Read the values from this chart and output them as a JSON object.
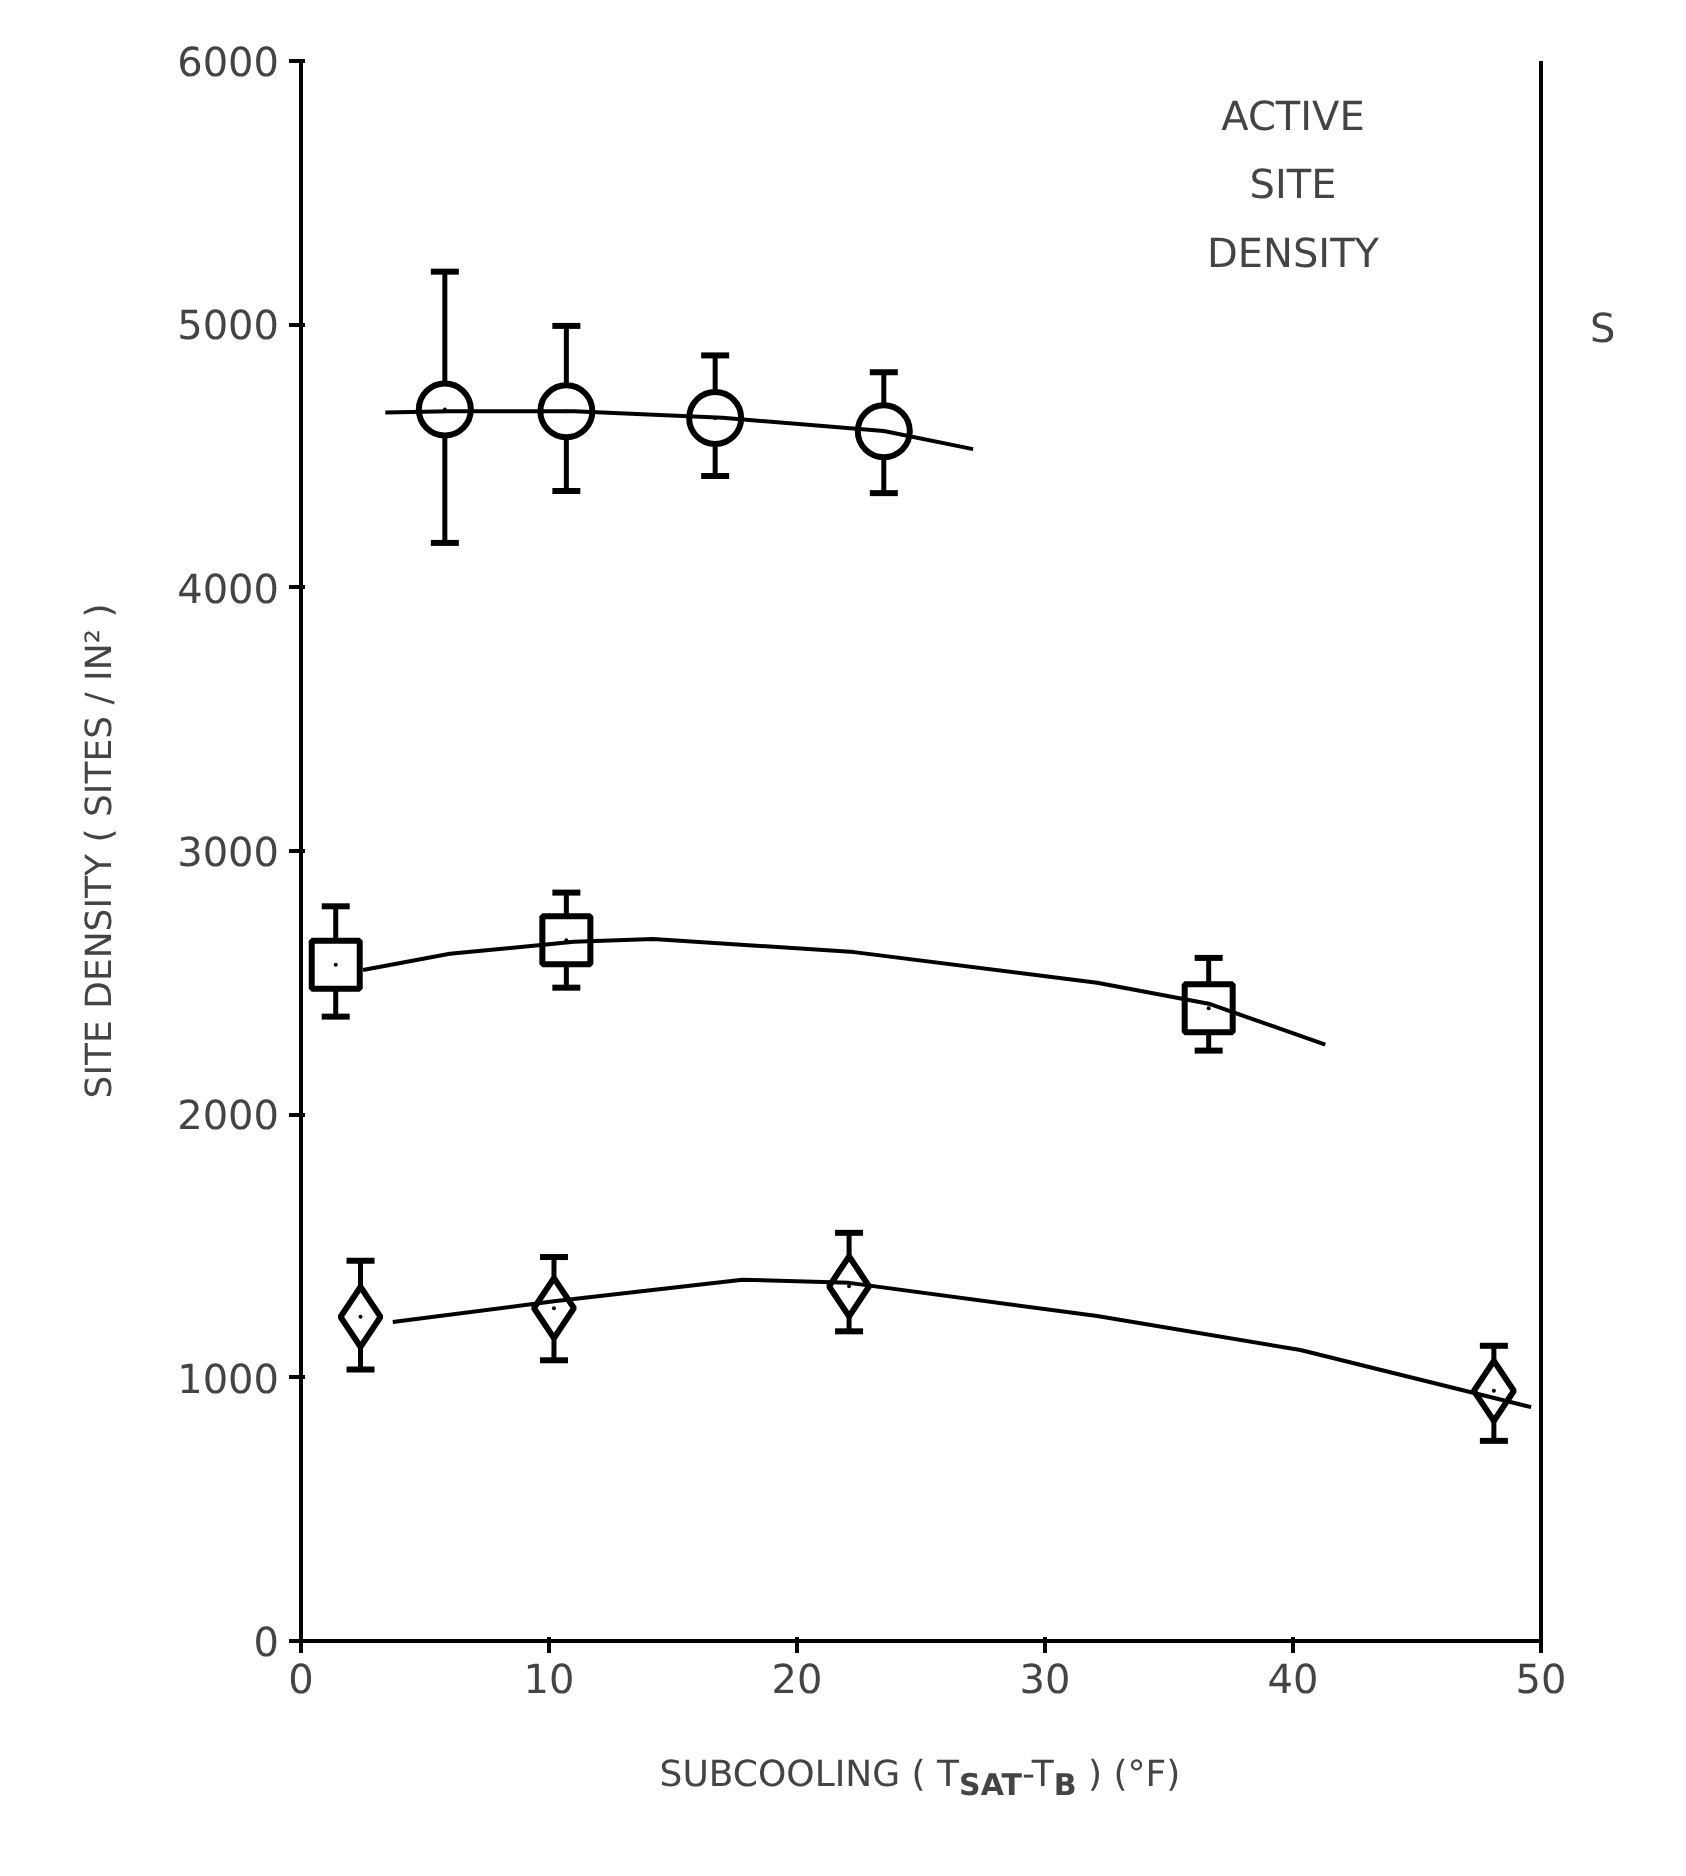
{
  "chart_data": {
    "type": "scatter",
    "xlabel": "SUBCOOLING ( T$_{SAT}$-T$_{B}$ ) (°F)",
    "ylabel": "SITE DENSITY ( SITES / IN² )",
    "annotations": [
      "ACTIVE",
      "SITE",
      "DENSITY",
      "S"
    ],
    "xlim": [
      0,
      50
    ],
    "ylim": [
      0,
      6000
    ],
    "xticks": [
      0,
      10,
      20,
      30,
      40,
      50
    ],
    "yticks": [
      0,
      1000,
      2000,
      3000,
      4000,
      5000,
      6000
    ],
    "grid": false,
    "series": [
      {
        "type": "scatter",
        "marker": "circle",
        "color": "#000000",
        "x": [
          5.8,
          10.7,
          16.7,
          23.5
        ],
        "values": [
          4677,
          4670,
          4644,
          4594
        ],
        "errors": [
          [
            4170,
            5200
          ],
          [
            4367,
            4994
          ],
          [
            4424,
            4882
          ],
          [
            4359,
            4818
          ]
        ]
      },
      {
        "type": "scatter",
        "marker": "square",
        "color": "#000000",
        "x": [
          1.4,
          10.7,
          36.6
        ],
        "values": [
          2568,
          2661,
          2403
        ],
        "errors": [
          [
            2371,
            2790
          ],
          [
            2481,
            2842
          ],
          [
            2242,
            2594
          ]
        ]
      },
      {
        "type": "scatter",
        "marker": "diamond",
        "color": "#000000",
        "x": [
          2.4,
          10.2,
          22.1,
          48.1
        ],
        "values": [
          1231,
          1264,
          1347,
          950
        ],
        "errors": [
          [
            1031,
            1444
          ],
          [
            1066,
            1458
          ],
          [
            1176,
            1550
          ],
          [
            760,
            1121
          ]
        ]
      },
      {
        "type": "line",
        "marker": "none",
        "color": "#000000",
        "x": [
          3.4,
          6,
          11,
          17,
          23.5,
          27.1
        ],
        "values": [
          4665,
          4670,
          4670,
          4645,
          4595,
          4526
        ]
      },
      {
        "type": "line",
        "marker": "none",
        "color": "#000000",
        "x": [
          2.5,
          6,
          11,
          14.2,
          22.3,
          32.1,
          36.6,
          41.3
        ],
        "values": [
          2548,
          2610,
          2655,
          2666,
          2616,
          2500,
          2420,
          2265
        ]
      },
      {
        "type": "line",
        "marker": "none",
        "color": "#000000",
        "x": [
          3.7,
          10.2,
          17.8,
          22.1,
          32.1,
          40.3,
          49.6
        ],
        "values": [
          1211,
          1290,
          1372,
          1360,
          1234,
          1105,
          888
        ]
      }
    ]
  }
}
